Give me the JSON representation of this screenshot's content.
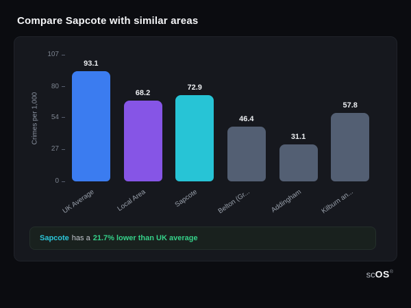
{
  "page": {
    "title": "Compare Sapcote with similar areas"
  },
  "chart_data": {
    "type": "bar",
    "title": "Compare Sapcote with similar areas",
    "categories": [
      "UK Average",
      "Local Area",
      "Sapcote",
      "Belton (Gr...",
      "Addingham",
      "Kilburn an..."
    ],
    "values": [
      93.1,
      68.2,
      72.9,
      46.4,
      31.1,
      57.8
    ],
    "bar_colors": [
      "#3b7cf0",
      "#8655e6",
      "#27c4d6",
      "#535f73",
      "#535f73",
      "#535f73"
    ],
    "xlabel": "",
    "ylabel": "Crimes per 1,000",
    "yticks": [
      0,
      27,
      54,
      80,
      107
    ],
    "ylim": [
      0,
      107
    ],
    "grid": false,
    "legend": "none"
  },
  "note": {
    "area": "Sapcote",
    "middle": "has a",
    "highlight": "21.7% lower than UK average"
  },
  "footer": {
    "logo_prefix": "sc",
    "logo_suffix": "OS",
    "registered": "®"
  },
  "colors": {
    "background": "#0b0c10",
    "card": "#16181e",
    "accent_teal": "#2bc6d8",
    "accent_green": "#35d189",
    "axis_text": "#8b93a1"
  }
}
